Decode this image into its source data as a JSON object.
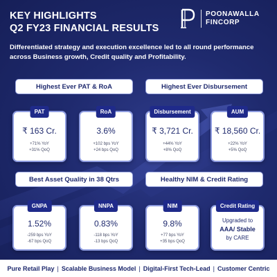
{
  "header": {
    "title_line1": "KEY HIGHLIGHTS",
    "title_line2": "Q2 FY23 FINANCIAL RESULTS",
    "logo_line1": "POONAWALLA",
    "logo_line2": "FINCORP",
    "logo_icon": "poonawalla-p-logo-icon"
  },
  "tagline": "Differentiated strategy and execution excellence led to all round performance across Business growth, Credit quality and Profitability.",
  "sections": {
    "pat_roa": "Highest Ever PAT & RoA",
    "disbursement": "Highest Ever Disbursement",
    "asset_quality": "Best Asset Quality in 38 Qtrs",
    "nim_rating": "Healthy NIM & Credit Rating"
  },
  "cards": {
    "pat": {
      "label": "PAT",
      "value": "₹ 163 Cr.",
      "yoy": "+71% YoY",
      "qoq": "+31% QoQ"
    },
    "roa": {
      "label": "RoA",
      "value": "3.6%",
      "yoy": "+102 bps YoY",
      "qoq": "+24 bps QoQ"
    },
    "disbursement": {
      "label": "Disbursement",
      "value": "₹ 3,721 Cr.",
      "yoy": "+44% YoY",
      "qoq": "+8% QoQ"
    },
    "aum": {
      "label": "AUM",
      "value": "₹ 18,560 Cr.",
      "yoy": "+22% YoY",
      "qoq": "+5% QoQ"
    },
    "gnpa": {
      "label": "GNPA",
      "value": "1.52%",
      "yoy": "-259 bps YoY",
      "qoq": "-67 bps QoQ"
    },
    "nnpa": {
      "label": "NNPA",
      "value": "0.83%",
      "yoy": "-118 bps YoY",
      "qoq": "-13 bps QoQ"
    },
    "nim": {
      "label": "NIM",
      "value": "9.8%",
      "yoy": "+77 bps YoY",
      "qoq": "+35 bps QoQ"
    },
    "rating": {
      "label": "Credit Rating",
      "line1": "Upgraded to",
      "line2": "AAA/ Stable",
      "line3": "by CARE"
    }
  },
  "footer": {
    "item1": "Pure Retail Play",
    "item2": "Scalable Business Model",
    "item3": "Digital-First Tech-Lead",
    "item4": "Customer Centric",
    "separator": "|"
  },
  "colors": {
    "background": "#1f2a6e",
    "card_head": "#1f2a8a",
    "card_border": "#8e9ce0",
    "text_dark": "#1f2a6e"
  }
}
